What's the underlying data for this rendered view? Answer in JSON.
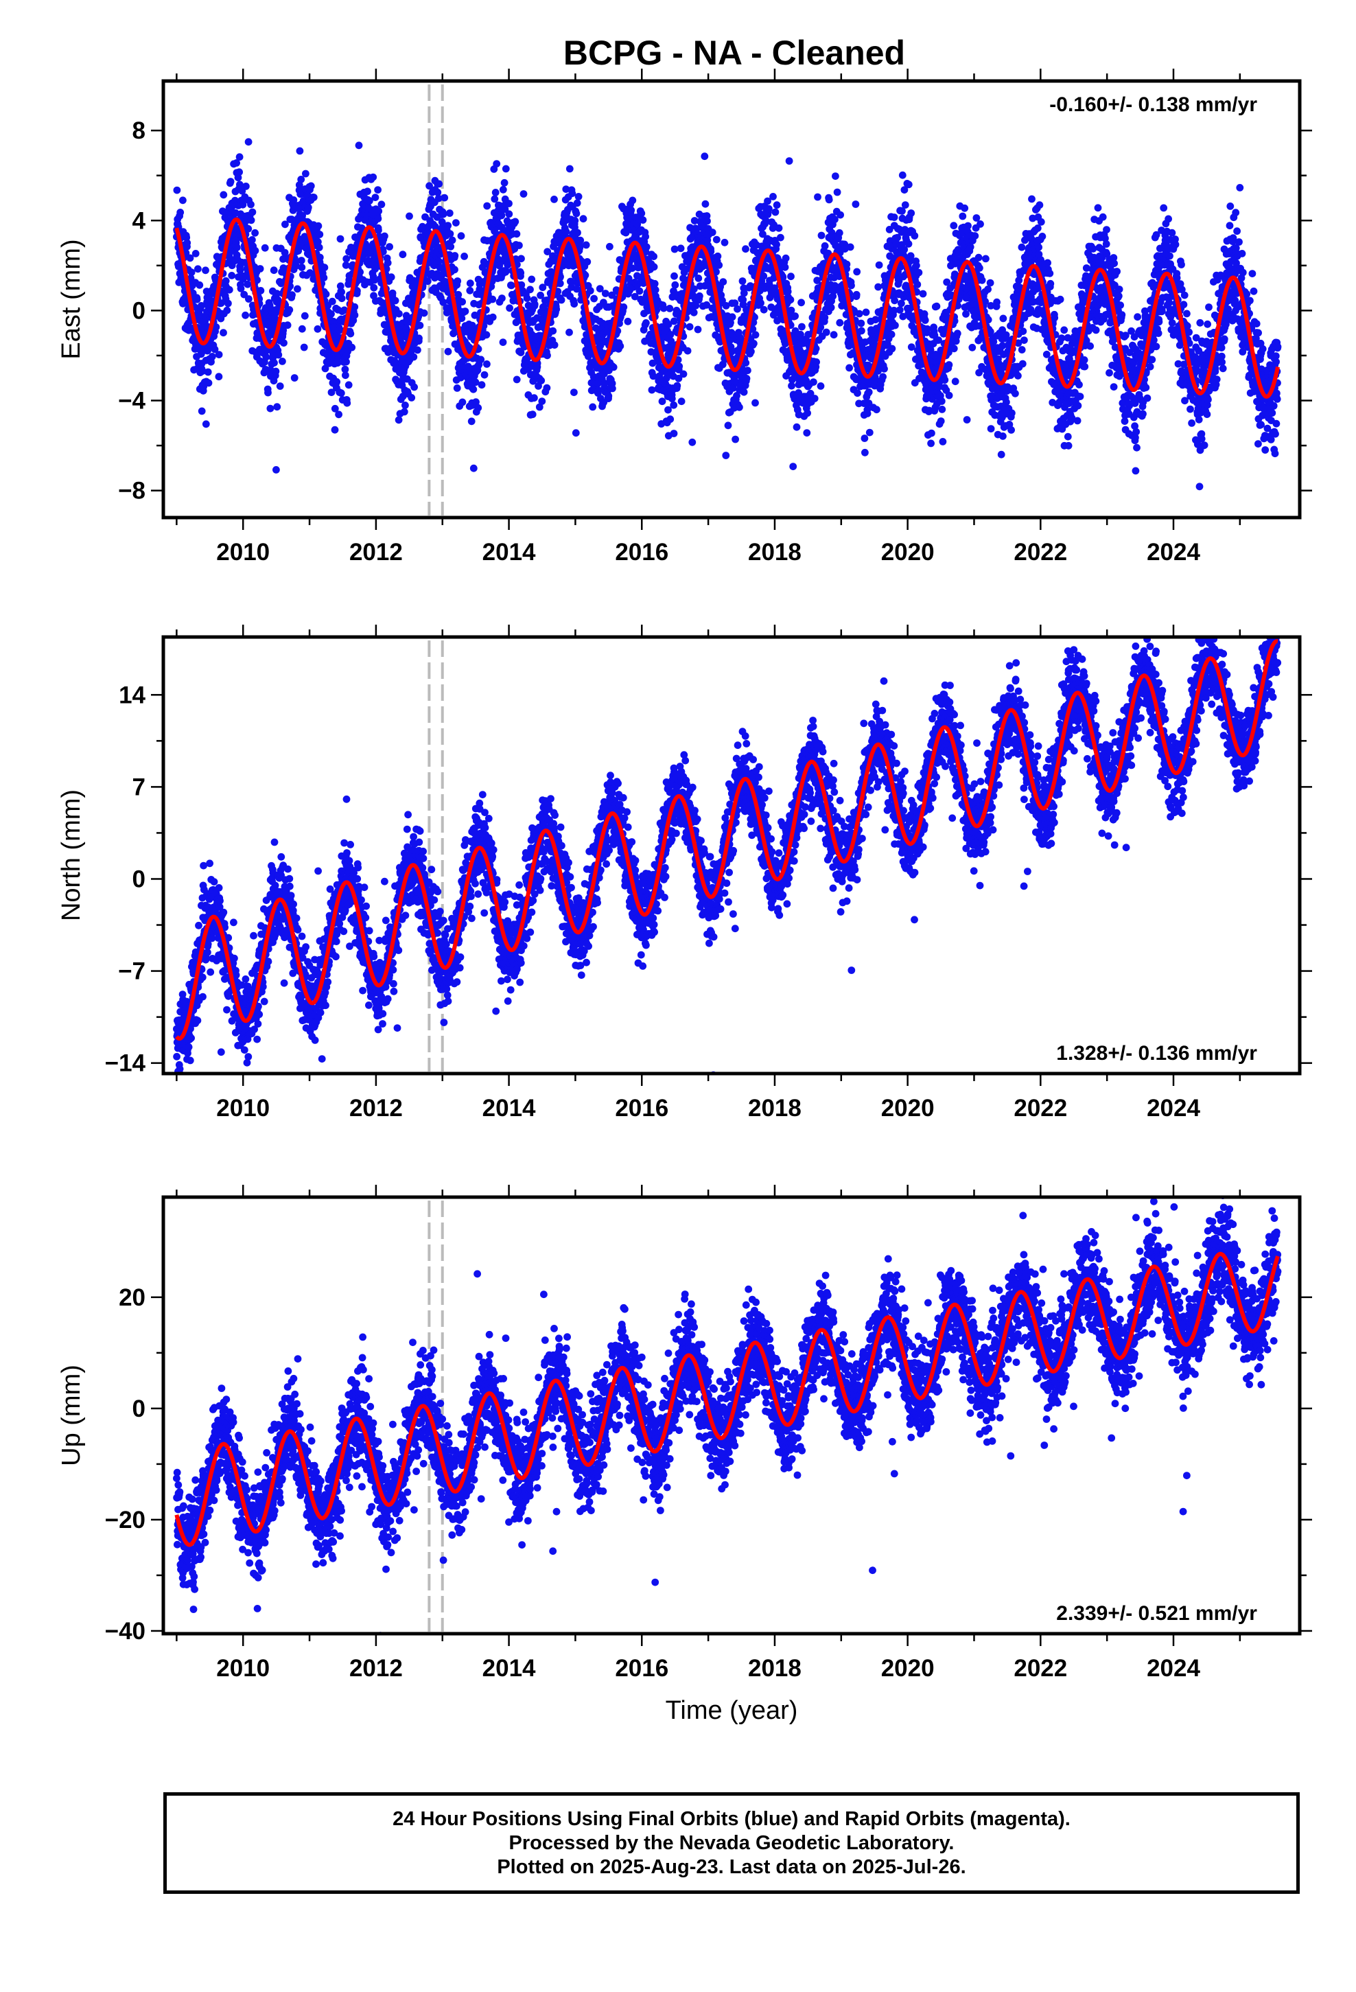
{
  "title": "BCPG  - NA - Cleaned",
  "colors": {
    "points": "#1010ee",
    "fit": "#ff0000",
    "offset_lines": "#bbbbbb",
    "frame": "#000000"
  },
  "footer": {
    "line1": "24 Hour Positions Using Final Orbits (blue) and Rapid Orbits (magenta).",
    "line2": "Processed by the Nevada Geodetic Laboratory.",
    "line3": "Plotted on 2025-Aug-23. Last data on 2025-Jul-26."
  },
  "chart_data": [
    {
      "type": "scatter",
      "ylabel": "East (mm)",
      "xlabel": "",
      "xlim": [
        2008.8,
        2025.9
      ],
      "ylim": [
        -9.2,
        10.2
      ],
      "x_ticks": [
        2010,
        2012,
        2014,
        2016,
        2018,
        2020,
        2022,
        2024
      ],
      "y_ticks": [
        -8,
        -4,
        0,
        4,
        8
      ],
      "rate_label": "-0.160+/- 0.138 mm/yr",
      "rate_position": "top-right",
      "offset_lines": [
        2012.8,
        2013.0
      ],
      "data_range": [
        2009.0,
        2025.57
      ],
      "fit": {
        "trend_mm_per_yr": -0.16,
        "intercept_at_2009": 1.4,
        "annual_amp_start": 2.8,
        "annual_amp_end": 2.6,
        "phase_peak_year_fraction": 0.9
      },
      "scatter_sigma": 1.25,
      "series": [
        {
          "name": "Final Orbits (blue)",
          "kind": "points"
        },
        {
          "kind": "fit"
        }
      ]
    },
    {
      "type": "scatter",
      "ylabel": "North (mm)",
      "xlabel": "",
      "xlim": [
        2008.8,
        2025.9
      ],
      "ylim": [
        -14.8,
        18.4
      ],
      "x_ticks": [
        2010,
        2012,
        2014,
        2016,
        2018,
        2020,
        2022,
        2024
      ],
      "y_ticks": [
        -14,
        -7,
        0,
        7,
        14
      ],
      "rate_label": "1.328+/- 0.136 mm/yr",
      "rate_position": "bottom-right",
      "offset_lines": [
        2012.8,
        2013.0
      ],
      "data_range": [
        2009.0,
        2025.57
      ],
      "fit": {
        "trend_mm_per_yr": 1.328,
        "intercept_at_2009": -7.9,
        "annual_amp_start": 4.3,
        "annual_amp_end": 4.0,
        "phase_peak_year_fraction": 0.55
      },
      "scatter_sigma": 1.5,
      "series": [
        {
          "name": "Final Orbits (blue)",
          "kind": "points"
        },
        {
          "kind": "fit"
        }
      ]
    },
    {
      "type": "scatter",
      "ylabel": "Up (mm)",
      "xlabel": "Time (year)",
      "xlim": [
        2008.8,
        2025.9
      ],
      "ylim": [
        -40.5,
        38
      ],
      "x_ticks": [
        2010,
        2012,
        2014,
        2016,
        2018,
        2020,
        2022,
        2024
      ],
      "y_ticks": [
        -40,
        -20,
        0,
        20
      ],
      "rate_label": "2.339+/- 0.521 mm/yr",
      "rate_position": "bottom-right",
      "offset_lines": [
        2012.8,
        2013.0
      ],
      "data_range": [
        2009.0,
        2025.57
      ],
      "fit": {
        "trend_mm_per_yr": 2.339,
        "intercept_at_2009": -16.5,
        "annual_amp_start": 8.5,
        "annual_amp_end": 7.5,
        "phase_peak_year_fraction": 0.7
      },
      "scatter_sigma": 4.2,
      "series": [
        {
          "name": "Final Orbits (blue)",
          "kind": "points"
        },
        {
          "kind": "fit"
        }
      ]
    }
  ]
}
